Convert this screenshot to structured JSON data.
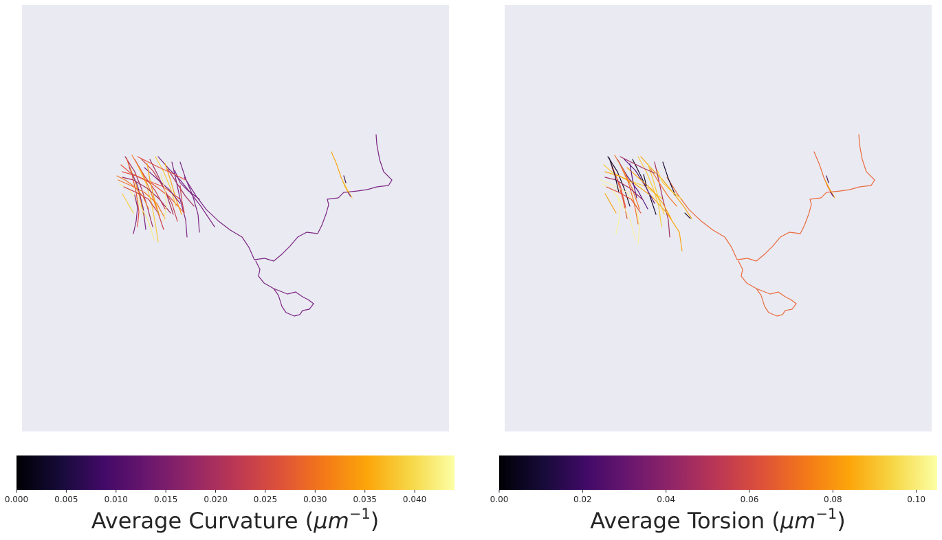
{
  "chart_data": [
    {
      "type": "line",
      "panel": "left",
      "title": "",
      "colormap": "inferno",
      "background": "#eaeaf2",
      "grid": false,
      "neuron_trace_colors": {
        "main_branch": "#7a2482",
        "dense_cluster_palette": [
          "#7a2482",
          "#a1305f",
          "#c8404a",
          "#e3543b",
          "#f0782a",
          "#f8a612",
          "#f7cd3c",
          "#f5ed8a"
        ],
        "right_tuft": [
          "#f8a612",
          "#f2c23a",
          "#3a1452"
        ]
      },
      "colorbar": {
        "label_text": "Average Curvature (",
        "label_math": "μm",
        "label_exponent": "−1",
        "label_close": ")",
        "min": 0.0,
        "max": 0.044,
        "ticks": [
          0.0,
          0.005,
          0.01,
          0.015,
          0.02,
          0.025,
          0.03,
          0.035,
          0.04
        ],
        "tick_labels": [
          "0.000",
          "0.005",
          "0.010",
          "0.015",
          "0.020",
          "0.025",
          "0.030",
          "0.035",
          "0.040"
        ]
      }
    },
    {
      "type": "line",
      "panel": "right",
      "title": "",
      "colormap": "inferno",
      "background": "#eaeaf2",
      "grid": false,
      "neuron_trace_colors": {
        "main_branch": "#ea6a3c",
        "dense_cluster_palette": [
          "#1a0b30",
          "#5a187a",
          "#a1305f",
          "#e3543b",
          "#f0782a",
          "#f8a612",
          "#f7cd3c",
          "#f8f2a0"
        ],
        "right_tuft": [
          "#ea6a3c",
          "#f8a612",
          "#3a1452"
        ]
      },
      "colorbar": {
        "label_text": "Average Torsion (",
        "label_math": "μm",
        "label_exponent": "−1",
        "label_close": ")",
        "min": 0.0,
        "max": 0.105,
        "ticks": [
          0.0,
          0.02,
          0.04,
          0.06,
          0.08,
          0.1
        ],
        "tick_labels": [
          "0.00",
          "0.02",
          "0.04",
          "0.06",
          "0.08",
          "0.10"
        ]
      }
    }
  ]
}
